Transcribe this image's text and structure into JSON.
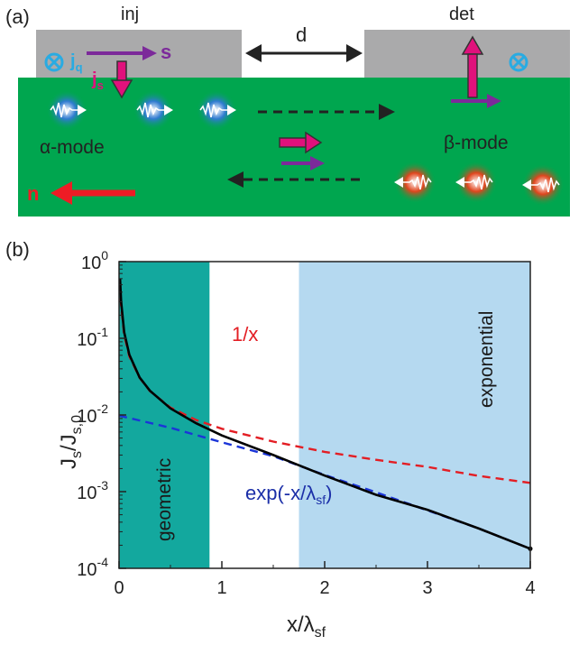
{
  "panel_a": {
    "label": "(a)",
    "inj_label": "inj",
    "det_label": "det",
    "gap_label": "d",
    "jq_label": "j",
    "jq_sub": "q",
    "s_label": "s",
    "js_label": "j",
    "js_sub": "s",
    "alpha_mode": "α-mode",
    "beta_mode": "β-mode",
    "n_label": "n",
    "colors": {
      "substrate": "#00a64f",
      "contact": "#aaaaab",
      "spin_arrow": "#7c2a9a",
      "current_arrow": "#e0117c",
      "charge_symbol": "#29abe2",
      "n_arrow": "#ee1c25",
      "alpha_glow": "#1d5fa0",
      "beta_glow": "#d63a1a"
    }
  },
  "panel_b": {
    "label": "(b)",
    "ylabel_main": "J",
    "ylabel_sub1": "s",
    "ylabel_mid": "/J",
    "ylabel_sub2": "s,0",
    "xlabel_main": "x/λ",
    "xlabel_sub": "sf",
    "y_tick_base": "10",
    "y_tick_exponents": [
      "0",
      "-1",
      "-2",
      "-3",
      "-4"
    ],
    "x_ticks": [
      "0",
      "1",
      "2",
      "3",
      "4"
    ],
    "region_geometric": "geometric",
    "region_exponential": "exponential",
    "curve_inv_label": "1/x",
    "curve_exp_label": "exp(-x/λ",
    "curve_exp_sub": "sf",
    "curve_exp_close": ")",
    "colors": {
      "geometric_region": "#13a89e",
      "exponential_region": "#b5d9f0",
      "total": "#000000",
      "inv": "#e31e24",
      "exp": "#1b35d8"
    }
  },
  "chart_data": {
    "type": "line",
    "xlabel": "x/λsf",
    "ylabel": "Js/Js,0",
    "xlim": [
      0,
      4
    ],
    "ylim": [
      0.0001,
      1
    ],
    "yscale": "log",
    "regions": [
      {
        "name": "geometric",
        "x_range": [
          0,
          0.88
        ]
      },
      {
        "name": "exponential",
        "x_range": [
          1.75,
          4
        ]
      }
    ],
    "series": [
      {
        "name": "",
        "style": "solid",
        "color": "#000000",
        "x": [
          0.01,
          0.02,
          0.05,
          0.1,
          0.2,
          0.3,
          0.5,
          0.75,
          1.0,
          1.5,
          2.0,
          2.5,
          3.0,
          3.5,
          4.0
        ],
        "y": [
          0.6,
          0.3,
          0.12,
          0.061,
          0.0309,
          0.0207,
          0.0122,
          0.0078,
          0.0054,
          0.003,
          0.00162,
          0.00091,
          0.00058,
          0.00033,
          0.00018
        ]
      },
      {
        "name": "1/x",
        "style": "dashed",
        "color": "#e31e24",
        "x": [
          0.01,
          0.02,
          0.05,
          0.1,
          0.2,
          0.3,
          0.5,
          0.75,
          1.0,
          1.5,
          2.0,
          2.5,
          3.0,
          3.5,
          4.0
        ],
        "y": [
          0.5,
          0.26,
          0.11,
          0.058,
          0.0305,
          0.0205,
          0.0125,
          0.0086,
          0.0066,
          0.0045,
          0.0033,
          0.0026,
          0.0021,
          0.0016,
          0.0013
        ]
      },
      {
        "name": "exp(-x/λsf)",
        "style": "dashed",
        "color": "#1b35d8",
        "x": [
          0.0,
          0.5,
          1.0,
          1.5,
          2.0,
          2.5,
          3.0,
          3.5,
          4.0
        ],
        "y": [
          0.0098,
          0.0068,
          0.0044,
          0.0029,
          0.00165,
          0.00098,
          0.00057,
          0.00033,
          0.00018
        ]
      }
    ]
  }
}
